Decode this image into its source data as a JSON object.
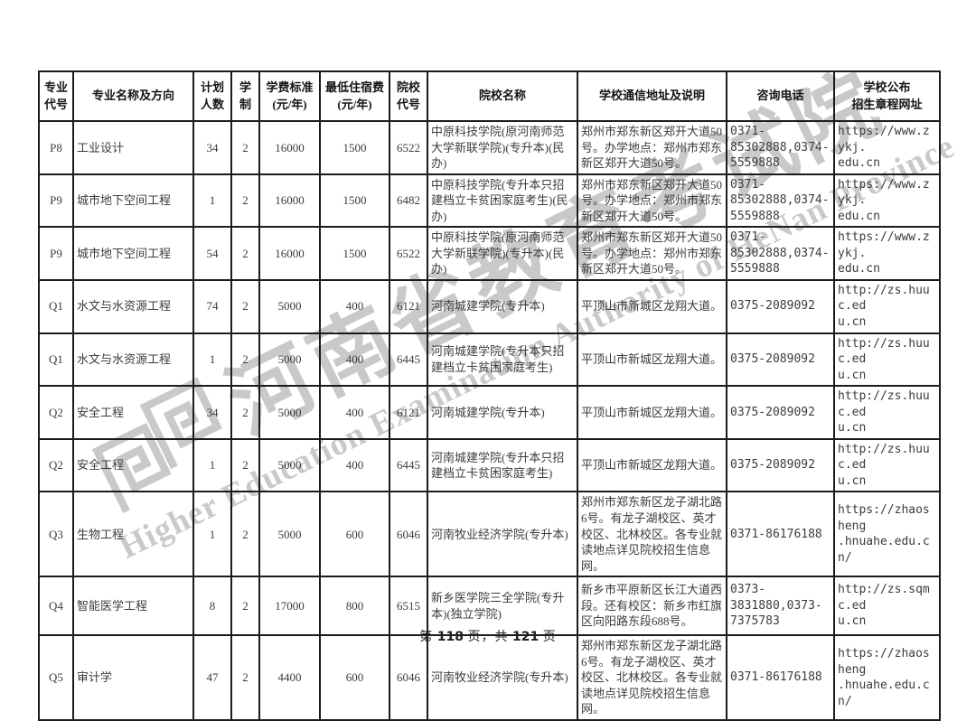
{
  "watermark": {
    "chinese": "河南省教育考试院",
    "english": "Higher Education Examination Authority of HeNan Province",
    "color": "#c9c9c9"
  },
  "table": {
    "headers": {
      "code": "专业\n代号",
      "major": "专业名称及方向",
      "plan": "计划\n人数",
      "years": "学\n制",
      "tuition": "学费标准\n(元/年)",
      "dorm": "最低住宿费\n(元/年)",
      "inst_code": "院校\n代号",
      "inst_name": "院校名称",
      "address": "学校通信地址及说明",
      "phone": "咨询电话",
      "url": "学校公布\n招生章程网址"
    },
    "rows": [
      {
        "code": "P8",
        "major": "工业设计",
        "plan": "34",
        "years": "2",
        "tuition": "16000",
        "dorm": "1500",
        "inst_code": "6522",
        "inst_name": "中原科技学院(原河南师范大学新联学院)(专升本)(民办)",
        "address": "郑州市郑东新区郑开大道50号。办学地点：郑州市郑东新区郑开大道50号。",
        "phone": "0371-\n85302888,0374-\n5559888",
        "url": "https://www.zykj.\nedu.cn"
      },
      {
        "code": "P9",
        "major": "城市地下空间工程",
        "plan": "1",
        "years": "2",
        "tuition": "16000",
        "dorm": "1500",
        "inst_code": "6482",
        "inst_name": "中原科技学院(专升本只招建档立卡贫困家庭考生)(民办)",
        "address": "郑州市郑东新区郑开大道50号。办学地点：郑州市郑东新区郑开大道50号。",
        "phone": "0371-\n85302888,0374-\n5559888",
        "url": "https://www.zykj.\nedu.cn"
      },
      {
        "code": "P9",
        "major": "城市地下空间工程",
        "plan": "54",
        "years": "2",
        "tuition": "16000",
        "dorm": "1500",
        "inst_code": "6522",
        "inst_name": "中原科技学院(原河南师范大学新联学院)(专升本)(民办)",
        "address": "郑州市郑东新区郑开大道50号。办学地点：郑州市郑东新区郑开大道50号。",
        "phone": "0371-\n85302888,0374-\n5559888",
        "url": "https://www.zykj.\nedu.cn"
      },
      {
        "code": "Q1",
        "major": "水文与水资源工程",
        "plan": "74",
        "years": "2",
        "tuition": "5000",
        "dorm": "400",
        "inst_code": "6121",
        "inst_name": "河南城建学院(专升本)",
        "address": "平顶山市新城区龙翔大道。",
        "phone": "0375-2089092",
        "url": "http://zs.huuc.ed\nu.cn"
      },
      {
        "code": "Q1",
        "major": "水文与水资源工程",
        "plan": "1",
        "years": "2",
        "tuition": "5000",
        "dorm": "400",
        "inst_code": "6445",
        "inst_name": "河南城建学院(专升本只招建档立卡贫困家庭考生)",
        "address": "平顶山市新城区龙翔大道。",
        "phone": "0375-2089092",
        "url": "http://zs.huuc.ed\nu.cn"
      },
      {
        "code": "Q2",
        "major": "安全工程",
        "plan": "34",
        "years": "2",
        "tuition": "5000",
        "dorm": "400",
        "inst_code": "6121",
        "inst_name": "河南城建学院(专升本)",
        "address": "平顶山市新城区龙翔大道。",
        "phone": "0375-2089092",
        "url": "http://zs.huuc.ed\nu.cn"
      },
      {
        "code": "Q2",
        "major": "安全工程",
        "plan": "1",
        "years": "2",
        "tuition": "5000",
        "dorm": "400",
        "inst_code": "6445",
        "inst_name": "河南城建学院(专升本只招建档立卡贫困家庭考生)",
        "address": "平顶山市新城区龙翔大道。",
        "phone": "0375-2089092",
        "url": "http://zs.huuc.ed\nu.cn"
      },
      {
        "code": "Q3",
        "major": "生物工程",
        "plan": "1",
        "years": "2",
        "tuition": "5000",
        "dorm": "600",
        "inst_code": "6046",
        "inst_name": "河南牧业经济学院(专升本)",
        "address": "郑州市郑东新区龙子湖北路6号。有龙子湖校区、英才校区、北林校区。各专业就读地点详见院校招生信息网。",
        "phone": "0371-86176188",
        "url": "https://zhaosheng\n.hnuahe.edu.cn/"
      },
      {
        "code": "Q4",
        "major": "智能医学工程",
        "plan": "8",
        "years": "2",
        "tuition": "17000",
        "dorm": "800",
        "inst_code": "6515",
        "inst_name": "新乡医学院三全学院(专升本)(独立学院)",
        "address": "新乡市平原新区长江大道西段。还有校区：新乡市红旗区向阳路东段688号。",
        "phone": "0373-\n3831880,0373-\n7375783",
        "url": "http://zs.sqmc.ed\nu.cn"
      },
      {
        "code": "Q5",
        "major": "审计学",
        "plan": "47",
        "years": "2",
        "tuition": "4400",
        "dorm": "600",
        "inst_code": "6046",
        "inst_name": "河南牧业经济学院(专升本)",
        "address": "郑州市郑东新区龙子湖北路6号。有龙子湖校区、英才校区、北林校区。各专业就读地点详见院校招生信息网。",
        "phone": "0371-86176188",
        "url": "https://zhaosheng\n.hnuahe.edu.cn/"
      }
    ]
  },
  "footer": {
    "prefix": "第",
    "page_number": "118",
    "middle": "页，共",
    "total_pages": "121",
    "suffix": "页"
  }
}
